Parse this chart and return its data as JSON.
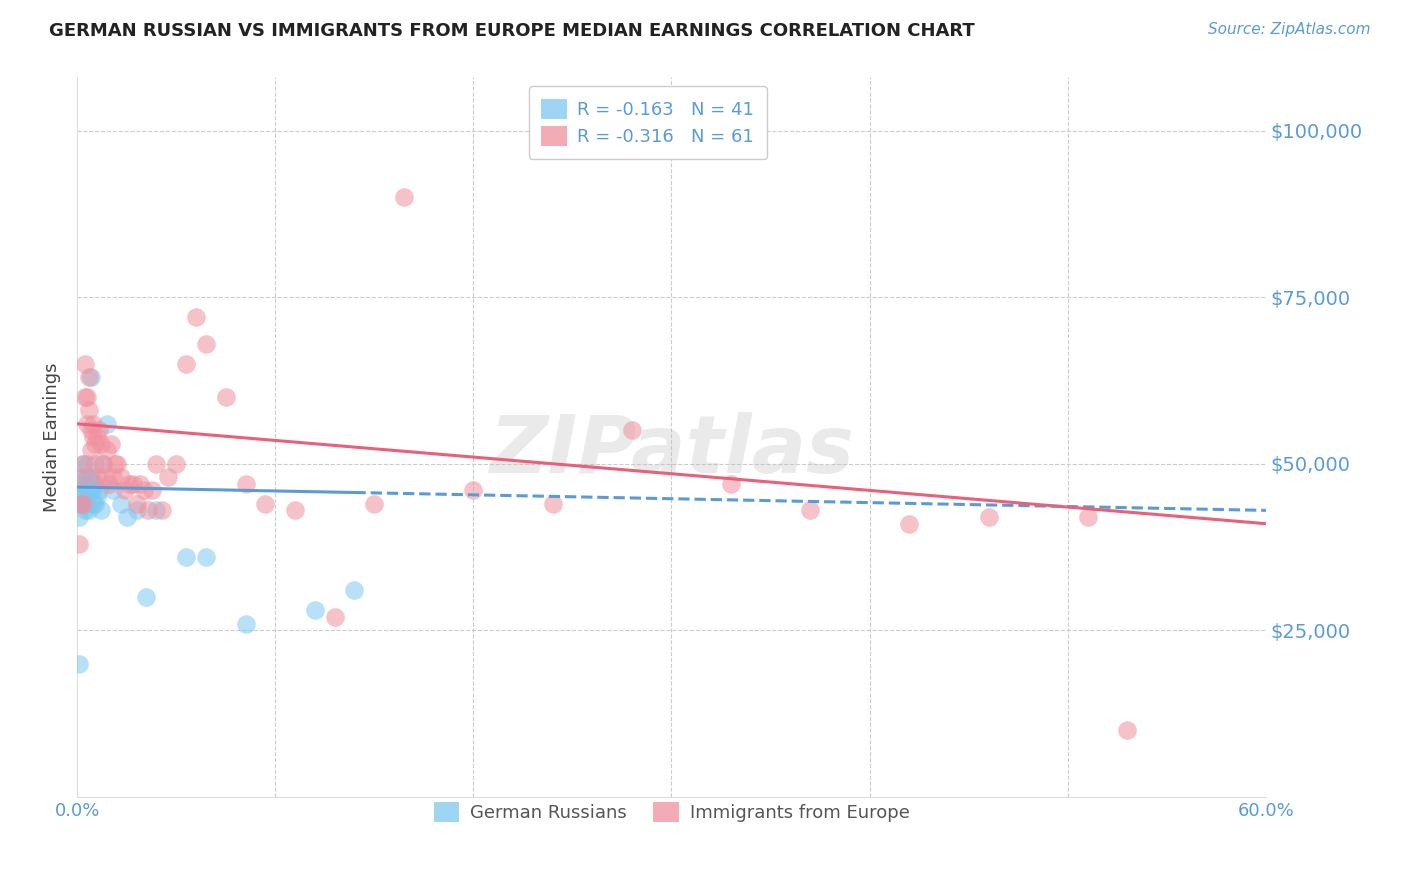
{
  "title": "GERMAN RUSSIAN VS IMMIGRANTS FROM EUROPE MEDIAN EARNINGS CORRELATION CHART",
  "source": "Source: ZipAtlas.com",
  "ylabel": "Median Earnings",
  "yticks": [
    0,
    25000,
    50000,
    75000,
    100000
  ],
  "ytick_labels": [
    "",
    "$25,000",
    "$50,000",
    "$75,000",
    "$100,000"
  ],
  "background_color": "#ffffff",
  "series1_name": "German Russians",
  "series1_color": "#7ec8f0",
  "series1_R": "-0.163",
  "series1_N": "41",
  "series2_name": "Immigrants from Europe",
  "series2_color": "#f0919e",
  "series2_R": "-0.316",
  "series2_N": "61",
  "series1_x": [
    0.001,
    0.001,
    0.002,
    0.002,
    0.003,
    0.003,
    0.003,
    0.003,
    0.004,
    0.004,
    0.004,
    0.005,
    0.005,
    0.005,
    0.005,
    0.006,
    0.006,
    0.006,
    0.007,
    0.007,
    0.007,
    0.008,
    0.008,
    0.009,
    0.009,
    0.01,
    0.011,
    0.012,
    0.013,
    0.015,
    0.018,
    0.022,
    0.025,
    0.03,
    0.035,
    0.04,
    0.055,
    0.065,
    0.085,
    0.12,
    0.14
  ],
  "series1_y": [
    20000,
    42000,
    44000,
    46000,
    44000,
    45000,
    47000,
    50000,
    43000,
    46000,
    48000,
    44000,
    46000,
    48000,
    50000,
    43000,
    46000,
    48000,
    46000,
    48000,
    63000,
    44000,
    46000,
    44000,
    47000,
    45000,
    46000,
    43000,
    50000,
    56000,
    46000,
    44000,
    42000,
    43000,
    30000,
    43000,
    36000,
    36000,
    26000,
    28000,
    31000
  ],
  "series2_x": [
    0.001,
    0.002,
    0.002,
    0.003,
    0.003,
    0.004,
    0.004,
    0.005,
    0.005,
    0.006,
    0.006,
    0.007,
    0.007,
    0.008,
    0.008,
    0.009,
    0.009,
    0.01,
    0.01,
    0.011,
    0.012,
    0.013,
    0.014,
    0.015,
    0.016,
    0.017,
    0.018,
    0.019,
    0.02,
    0.022,
    0.024,
    0.026,
    0.028,
    0.03,
    0.032,
    0.034,
    0.036,
    0.038,
    0.04,
    0.043,
    0.046,
    0.05,
    0.055,
    0.06,
    0.065,
    0.075,
    0.085,
    0.095,
    0.11,
    0.13,
    0.15,
    0.165,
    0.2,
    0.24,
    0.28,
    0.33,
    0.37,
    0.42,
    0.46,
    0.51,
    0.53
  ],
  "series2_y": [
    38000,
    44000,
    48000,
    50000,
    44000,
    60000,
    65000,
    56000,
    60000,
    63000,
    58000,
    55000,
    52000,
    54000,
    56000,
    50000,
    53000,
    54000,
    48000,
    55000,
    53000,
    50000,
    48000,
    52000,
    47000,
    53000,
    48000,
    50000,
    50000,
    48000,
    46000,
    47000,
    47000,
    44000,
    47000,
    46000,
    43000,
    46000,
    50000,
    43000,
    48000,
    50000,
    65000,
    72000,
    68000,
    60000,
    47000,
    44000,
    43000,
    27000,
    44000,
    90000,
    46000,
    44000,
    55000,
    47000,
    43000,
    41000,
    42000,
    42000,
    10000
  ],
  "axis_color": "#5b9bd5",
  "grid_color": "#cccccc",
  "line1_color": "#5b9bd5",
  "line2_color": "#e8607a",
  "line1_x0": 0.0,
  "line1_x1": 0.6,
  "line1_y0": 46500,
  "line1_y1": 43000,
  "line1_solid_end": 0.14,
  "line2_x0": 0.0,
  "line2_x1": 0.6,
  "line2_y0": 56000,
  "line2_y1": 41000,
  "xmin": 0.0,
  "xmax": 0.6,
  "ymin": 0,
  "ymax": 108000
}
